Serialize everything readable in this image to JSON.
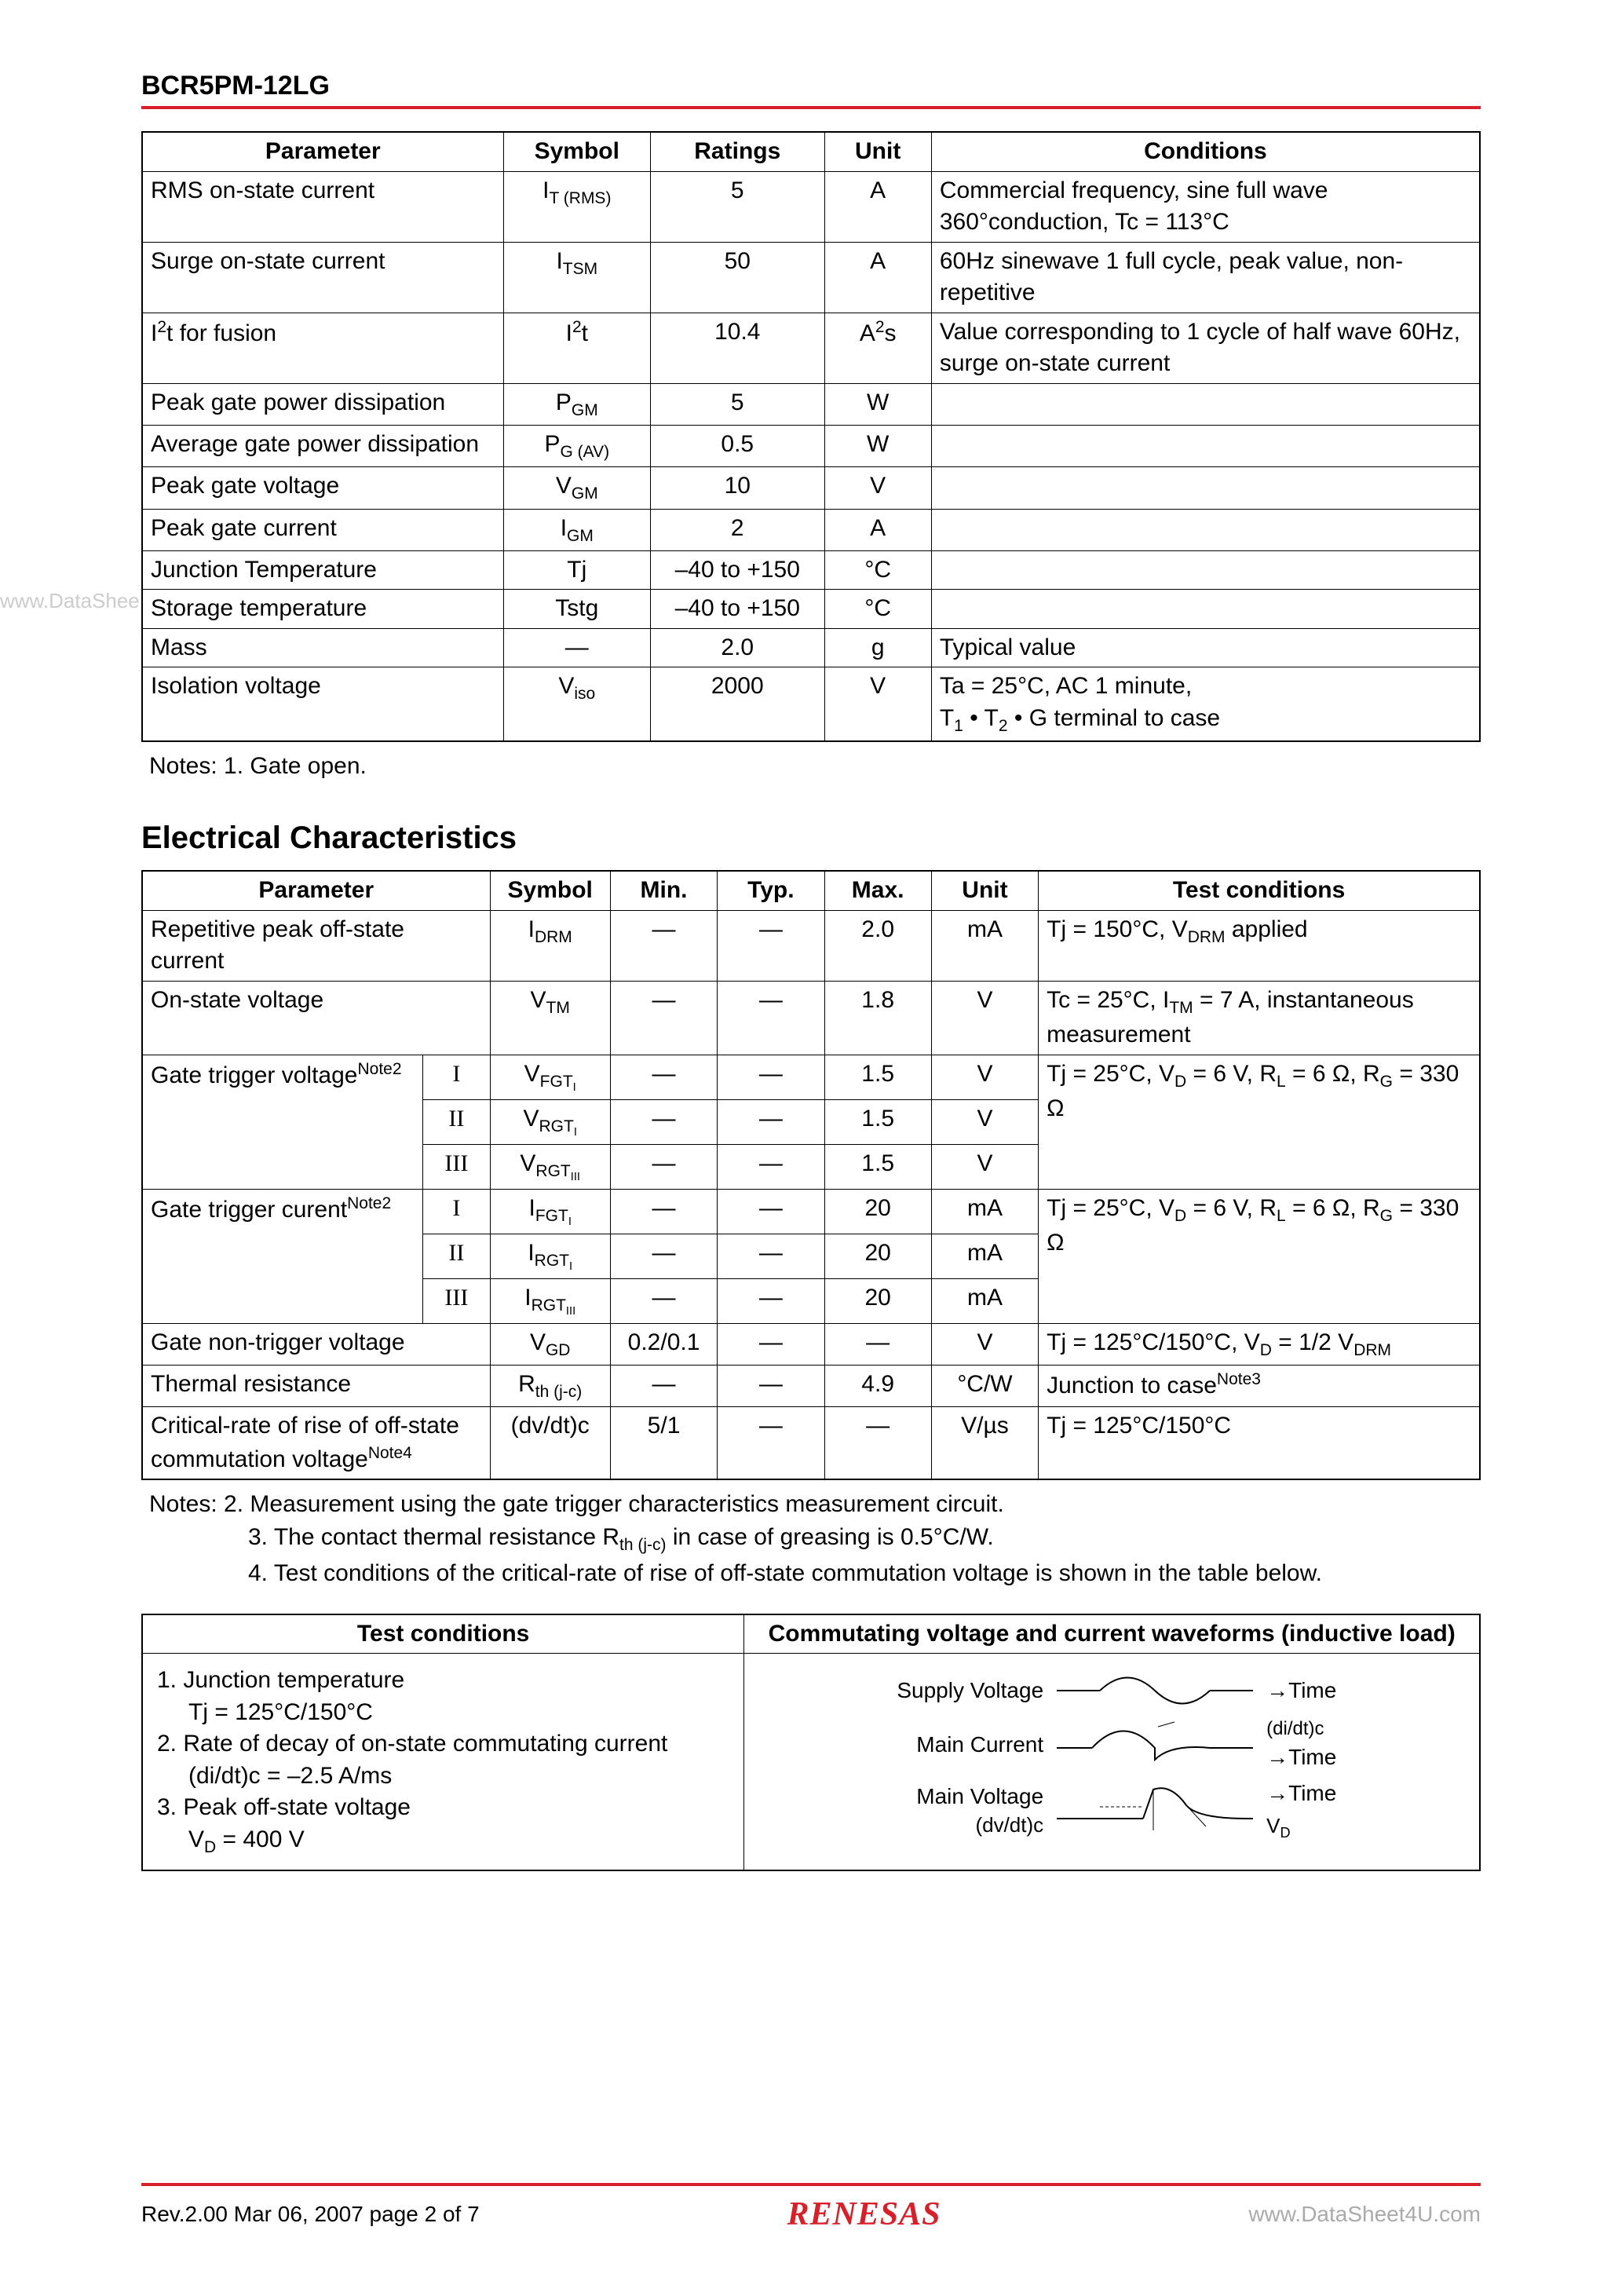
{
  "header": {
    "part_number": "BCR5PM-12LG",
    "rule_color": "#d8202a"
  },
  "watermark_left": "www.DataShee",
  "table1": {
    "headers": [
      "Parameter",
      "Symbol",
      "Ratings",
      "Unit",
      "Conditions"
    ],
    "col_widths_pct": [
      27,
      11,
      13,
      8,
      41
    ],
    "rows": [
      {
        "param": "RMS on-state current",
        "sym": "I<sub>T (RMS)</sub>",
        "rating": "5",
        "unit": "A",
        "cond": "Commercial frequency, sine full wave 360°conduction, Tc = 113°C"
      },
      {
        "param": "Surge on-state current",
        "sym": "I<sub>TSM</sub>",
        "rating": "50",
        "unit": "A",
        "cond": "60Hz sinewave 1 full cycle, peak value, non-repetitive"
      },
      {
        "param": "I<sup>2</sup>t for fusion",
        "sym": "I<sup>2</sup>t",
        "rating": "10.4",
        "unit": "A<sup>2</sup>s",
        "cond": "Value corresponding to 1 cycle of half wave 60Hz, surge on-state current"
      },
      {
        "param": "Peak gate power dissipation",
        "sym": "P<sub>GM</sub>",
        "rating": "5",
        "unit": "W",
        "cond": ""
      },
      {
        "param": "Average gate power dissipation",
        "sym": "P<sub>G (AV)</sub>",
        "rating": "0.5",
        "unit": "W",
        "cond": ""
      },
      {
        "param": "Peak gate voltage",
        "sym": "V<sub>GM</sub>",
        "rating": "10",
        "unit": "V",
        "cond": ""
      },
      {
        "param": "Peak gate current",
        "sym": "I<sub>GM</sub>",
        "rating": "2",
        "unit": "A",
        "cond": ""
      },
      {
        "param": "Junction Temperature",
        "sym": "Tj",
        "rating": "–40 to +150",
        "unit": "°C",
        "cond": ""
      },
      {
        "param": "Storage temperature",
        "sym": "Tstg",
        "rating": "–40 to +150",
        "unit": "°C",
        "cond": ""
      },
      {
        "param": "Mass",
        "sym": "—",
        "rating": "2.0",
        "unit": "g",
        "cond": "Typical value"
      },
      {
        "param": "Isolation voltage",
        "sym": "V<sub>iso</sub>",
        "rating": "2000",
        "unit": "V",
        "cond": "Ta = 25°C, AC 1 minute,<br>T<sub>1</sub> • T<sub>2</sub> • G terminal to case"
      }
    ]
  },
  "notes1": "Notes:  1.  Gate open.",
  "section2_title": "Electrical Characteristics",
  "table2": {
    "headers": [
      "Parameter",
      "Symbol",
      "Min.",
      "Typ.",
      "Max.",
      "Unit",
      "Test conditions"
    ],
    "rows": [
      {
        "param": "Repetitive peak off-state current",
        "sub": "",
        "sym": "I<sub>DRM</sub>",
        "min": "—",
        "typ": "—",
        "max": "2.0",
        "unit": "mA",
        "cond": "Tj = 150°C, V<sub>DRM</sub> applied",
        "pspan": 2
      },
      {
        "param": "On-state voltage",
        "sub": "",
        "sym": "V<sub>TM</sub>",
        "min": "—",
        "typ": "—",
        "max": "1.8",
        "unit": "V",
        "cond": "Tc = 25°C, I<sub>TM</sub> = 7 A, instantaneous measurement",
        "pspan": 2
      },
      {
        "param": "Gate trigger voltage<sup>Note2</sup>",
        "sub": "I",
        "sym": "V<sub>FGT<sub>I</sub></sub>",
        "min": "—",
        "typ": "—",
        "max": "1.5",
        "unit": "V",
        "cond": "Tj = 25°C, V<sub>D</sub> = 6 V, R<sub>L</sub> = 6 Ω, R<sub>G</sub> = 330 Ω",
        "pspan": 1,
        "prows": 3,
        "crows": 3
      },
      {
        "sub": "II",
        "sym": "V<sub>RGT<sub>I</sub></sub>",
        "min": "—",
        "typ": "—",
        "max": "1.5",
        "unit": "V"
      },
      {
        "sub": "III",
        "sym": "V<sub>RGT<sub>III</sub></sub>",
        "min": "—",
        "typ": "—",
        "max": "1.5",
        "unit": "V"
      },
      {
        "param": "Gate trigger curent<sup>Note2</sup>",
        "sub": "I",
        "sym": "I<sub>FGT<sub>I</sub></sub>",
        "min": "—",
        "typ": "—",
        "max": "20",
        "unit": "mA",
        "cond": "Tj = 25°C, V<sub>D</sub> = 6 V, R<sub>L</sub> = 6 Ω, R<sub>G</sub> = 330 Ω",
        "pspan": 1,
        "prows": 3,
        "crows": 3
      },
      {
        "sub": "II",
        "sym": "I<sub>RGT<sub>I</sub></sub>",
        "min": "—",
        "typ": "—",
        "max": "20",
        "unit": "mA"
      },
      {
        "sub": "III",
        "sym": "I<sub>RGT<sub>III</sub></sub>",
        "min": "—",
        "typ": "—",
        "max": "20",
        "unit": "mA"
      },
      {
        "param": "Gate non-trigger voltage",
        "sub": "",
        "sym": "V<sub>GD</sub>",
        "min": "0.2/0.1",
        "typ": "—",
        "max": "—",
        "unit": "V",
        "cond": "Tj = 125°C/150°C, V<sub>D</sub> = 1/2 V<sub>DRM</sub>",
        "pspan": 2
      },
      {
        "param": "Thermal resistance",
        "sub": "",
        "sym": "R<sub>th (j-c)</sub>",
        "min": "—",
        "typ": "—",
        "max": "4.9",
        "unit": "°C/W",
        "cond": "Junction to case<sup>Note3</sup>",
        "pspan": 2
      },
      {
        "param": "Critical-rate of rise of off-state commutation voltage<sup>Note4</sup>",
        "sub": "",
        "sym": "(dv/dt)c",
        "min": "5/1",
        "typ": "—",
        "max": "—",
        "unit": "V/µs",
        "cond": "Tj = 125°C/150°C",
        "pspan": 2
      }
    ]
  },
  "notes2": [
    "Notes:  2.  Measurement using the gate trigger characteristics measurement circuit.",
    "3.  The contact thermal resistance R<sub>th (j-c)</sub> in case of greasing is 0.5°C/W.",
    "4.  Test conditions of the critical-rate of rise of off-state commutation voltage is shown in the table below."
  ],
  "table3": {
    "header_left": "Test conditions",
    "header_right": "Commutating voltage and current waveforms (inductive load)",
    "test_conditions": [
      "1. Junction temperature",
      "    Tj = 125°C/150°C",
      "2. Rate of decay of on-state commutating current",
      "    (di/dt)c = –2.5 A/ms",
      "3. Peak off-state voltage",
      "    V<sub>D</sub> = 400 V"
    ],
    "waveforms": [
      {
        "label": "Supply Voltage",
        "right": "→Time",
        "anno": ""
      },
      {
        "label": "Main Current",
        "right": "→Time",
        "anno": "(di/dt)c"
      },
      {
        "label": "Main Voltage",
        "right": "→Time",
        "anno": ""
      },
      {
        "label": "(dv/dt)c",
        "right": "V<sub>D</sub>",
        "anno": "",
        "sublabel": true
      }
    ]
  },
  "footer": {
    "rev": "Rev.2.00   Mar 06, 2007   page  2  of 7",
    "logo": "RENESAS",
    "ds4u": "www.DataSheet4U.com"
  }
}
